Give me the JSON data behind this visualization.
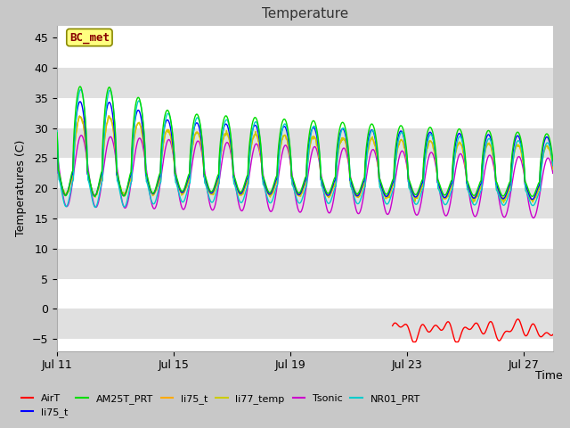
{
  "title": "Temperature",
  "xlabel": "Time",
  "ylabel": "Temperatures (C)",
  "ylim": [
    -7,
    47
  ],
  "xlim": [
    0,
    17
  ],
  "yticks": [
    -5,
    0,
    5,
    10,
    15,
    20,
    25,
    30,
    35,
    40,
    45
  ],
  "xtick_labels": [
    "Jul 11",
    "Jul 15",
    "Jul 19",
    "Jul 23",
    "Jul 27"
  ],
  "xtick_positions": [
    0,
    4,
    8,
    12,
    16
  ],
  "fig_bg": "#c8c8c8",
  "plot_bg": "#ffffff",
  "band_color": "#e0e0e0",
  "annotation_text": "BC_met",
  "annotation_bg": "#ffff80",
  "annotation_border": "#888800",
  "line_width": 1.0,
  "grid_color": "#ffffff",
  "series": [
    {
      "label": "AirT",
      "color": "#ff0000",
      "ls": "-",
      "lw": 1.2
    },
    {
      "label": "li75_t",
      "color": "#0000ff",
      "ls": "-",
      "lw": 1.2
    },
    {
      "label": "AM25T_PRT",
      "color": "#00dd00",
      "ls": "-",
      "lw": 1.2
    },
    {
      "label": "li75_t",
      "color": "#ffaa00",
      "ls": "-",
      "lw": 1.2
    },
    {
      "label": "li77_temp",
      "color": "#dddd00",
      "ls": "-",
      "lw": 1.2
    },
    {
      "label": "Tsonic",
      "color": "#cc00cc",
      "ls": "-",
      "lw": 1.2
    },
    {
      "label": "NR01_PRT",
      "color": "#00cccc",
      "ls": "-",
      "lw": 1.2
    }
  ]
}
